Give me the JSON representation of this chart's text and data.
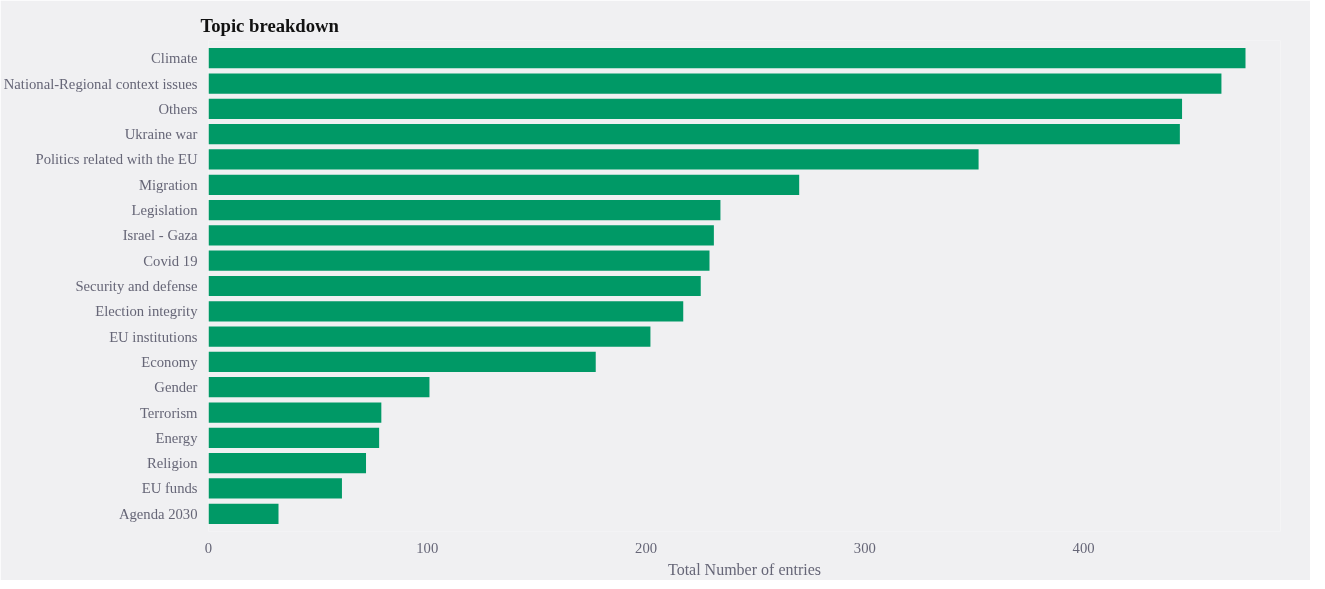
{
  "chart_data": {
    "type": "bar",
    "orientation": "horizontal",
    "title": "Topic breakdown",
    "xlabel": "Total Number of entries",
    "categories": [
      "Climate",
      "National-Regional context issues",
      "Others",
      "Ukraine war",
      "Politics related with the EU",
      "Migration",
      "Legislation",
      "Israel - Gaza",
      "Covid 19",
      "Security and defense",
      "Election integrity",
      "EU institutions",
      "Economy",
      "Gender",
      "Terrorism",
      "Energy",
      "Religion",
      "EU funds",
      "Agenda 2030"
    ],
    "values": [
      474,
      463,
      445,
      444,
      352,
      270,
      234,
      231,
      229,
      225,
      217,
      202,
      177,
      101,
      79,
      78,
      72,
      61,
      32
    ],
    "color": "#009966",
    "xlim": [
      0,
      490
    ],
    "xticks": [
      0,
      100,
      200,
      300,
      400
    ],
    "grid": false
  }
}
